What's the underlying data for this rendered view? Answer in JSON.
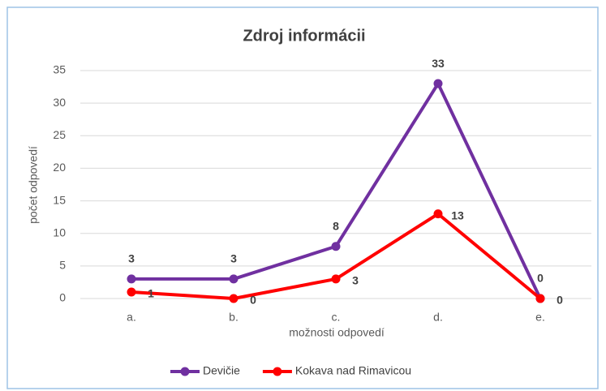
{
  "chart_data": {
    "type": "line",
    "title": "Zdroj informácii",
    "x_label": "možnosti odpovedí",
    "y_label": "počet odpovedí",
    "categories": [
      "a.",
      "b.",
      "c.",
      "d.",
      "e."
    ],
    "series": [
      {
        "name": "Devičie",
        "color": "#7030a0",
        "values": [
          3,
          3,
          8,
          33,
          0
        ]
      },
      {
        "name": "Kokava nad Rimavicou",
        "color": "#ff0000",
        "values": [
          1,
          0,
          3,
          13,
          0
        ]
      }
    ],
    "ylim": [
      0,
      35
    ],
    "yticks": [
      0,
      5,
      10,
      15,
      20,
      25,
      30,
      35
    ],
    "grid": true,
    "legend": "bottom"
  }
}
